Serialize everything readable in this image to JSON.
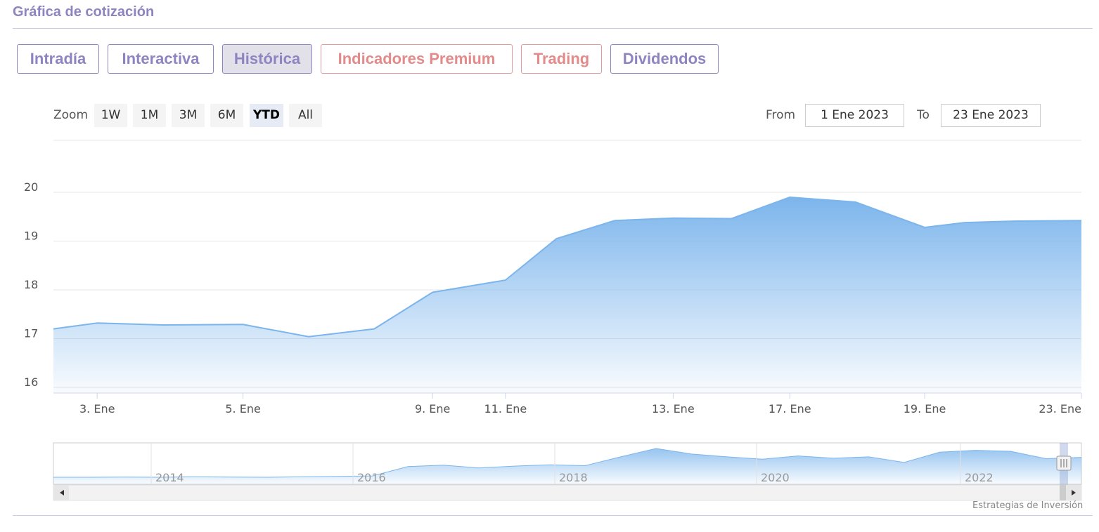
{
  "header": {
    "title": "Gráfica de cotización"
  },
  "tabs": [
    {
      "label": "Intradía"
    },
    {
      "label": "Interactiva"
    },
    {
      "label": "Histórica"
    },
    {
      "label": "Indicadores Premium"
    },
    {
      "label": "Trading"
    },
    {
      "label": "Dividendos"
    }
  ],
  "range_selector": {
    "zoom_label": "Zoom",
    "buttons": [
      "1W",
      "1M",
      "3M",
      "6M",
      "YTD",
      "All"
    ],
    "selected": "YTD",
    "from_label": "From",
    "from_value": "1 Ene 2023",
    "to_label": "To",
    "to_value": "23 Ene 2023"
  },
  "credits": "Estrategias de Inversión",
  "colors": {
    "accent": "#8e84c1",
    "premium": "#e38a8a",
    "series": "#7cb5ec"
  },
  "chart_data": {
    "type": "area",
    "x": [
      "2 Ene",
      "3 Ene",
      "4 Ene",
      "5 Ene",
      "6 Ene",
      "7 Ene",
      "9 Ene",
      "10 Ene",
      "11 Ene",
      "12 Ene",
      "13 Ene",
      "16 Ene",
      "17 Ene",
      "18 Ene",
      "19 Ene",
      "20 Ene",
      "22 Ene",
      "23 Ene"
    ],
    "x_index": [
      0,
      0.6,
      1.5,
      2.6,
      3.5,
      4.4,
      5.2,
      6.2,
      6.9,
      7.7,
      8.5,
      9.3,
      10.1,
      11,
      11.95,
      12.5,
      13.2,
      14.1
    ],
    "values": [
      17.2,
      17.32,
      17.28,
      17.29,
      17.04,
      17.2,
      17.95,
      18.2,
      19.05,
      19.42,
      19.47,
      19.46,
      19.9,
      19.8,
      19.28,
      19.38,
      19.41,
      19.42
    ],
    "ylim": [
      16,
      20
    ],
    "yticks": [
      "16",
      "17",
      "18",
      "19",
      "20"
    ],
    "xtick_labels": [
      "3. Ene",
      "5. Ene",
      "9. Ene",
      "11. Ene",
      "13. Ene",
      "17. Ene",
      "19. Ene",
      "23. Ene"
    ],
    "grid": true,
    "navigator": {
      "labels": [
        "2014",
        "2016",
        "2018",
        "2020",
        "2022"
      ],
      "overview_values": [
        1.2,
        1.2,
        1.25,
        1.2,
        1.3,
        1.25,
        1.2,
        1.3,
        1.4,
        1.5,
        3.5,
        3.8,
        3.2,
        3.6,
        3.9,
        3.7,
        5.6,
        7.4,
        6.2,
        5.6,
        5.1,
        5.8,
        5.3,
        5.6,
        4.4,
        6.6,
        7.0,
        6.8,
        5.2,
        5.5
      ]
    }
  }
}
